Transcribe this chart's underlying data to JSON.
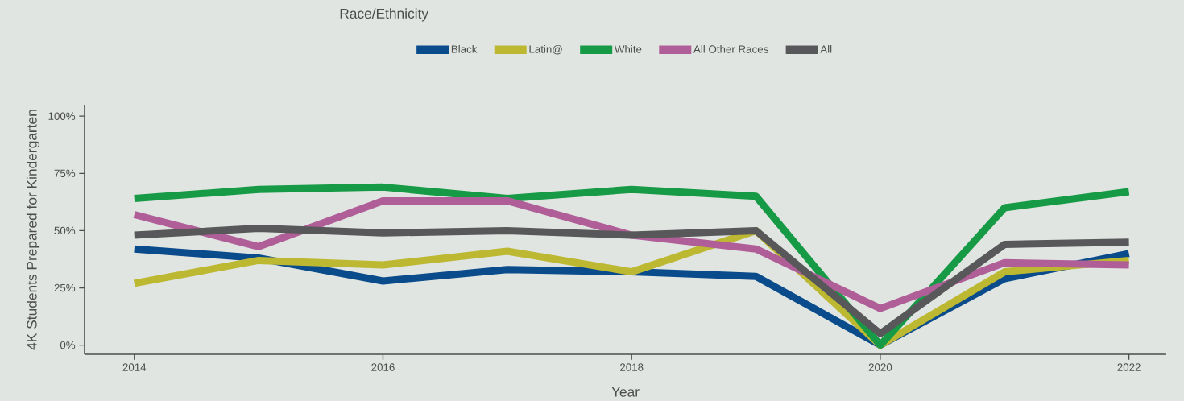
{
  "chart_data": {
    "type": "line",
    "legend_title": "Race/Ethnicity",
    "xlabel": "Year",
    "ylabel": "4K Students Prepared for Kindergarten",
    "x": [
      2014,
      2015,
      2016,
      2017,
      2018,
      2019,
      2020,
      2021,
      2022
    ],
    "series": [
      {
        "name": "Black",
        "color": "#0a4b8c",
        "values": [
          42,
          38,
          28,
          33,
          32,
          30,
          0,
          29,
          40
        ]
      },
      {
        "name": "Latin@",
        "color": "#bdb832",
        "values": [
          27,
          37,
          35,
          41,
          32,
          50,
          0,
          32,
          37
        ]
      },
      {
        "name": "White",
        "color": "#169a45",
        "values": [
          64,
          68,
          69,
          64,
          68,
          65,
          0,
          60,
          67
        ]
      },
      {
        "name": "All Other Races",
        "color": "#b05e98",
        "values": [
          57,
          43,
          63,
          63,
          48,
          42,
          16,
          36,
          35
        ]
      },
      {
        "name": "All",
        "color": "#58585a",
        "values": [
          48,
          51,
          49,
          50,
          48,
          50,
          5,
          44,
          45
        ]
      }
    ],
    "xlim": [
      2013.6,
      2022.3
    ],
    "ylim": [
      -4,
      105
    ],
    "xticks": [
      2014,
      2016,
      2018,
      2020,
      2022
    ],
    "yticks": [
      {
        "value": 0,
        "label": "0%"
      },
      {
        "value": 25,
        "label": "25%"
      },
      {
        "value": 50,
        "label": "50%"
      },
      {
        "value": 75,
        "label": "75%"
      },
      {
        "value": 100,
        "label": "100%"
      }
    ],
    "legend": "top",
    "marker": "none",
    "line_style": "solid"
  }
}
